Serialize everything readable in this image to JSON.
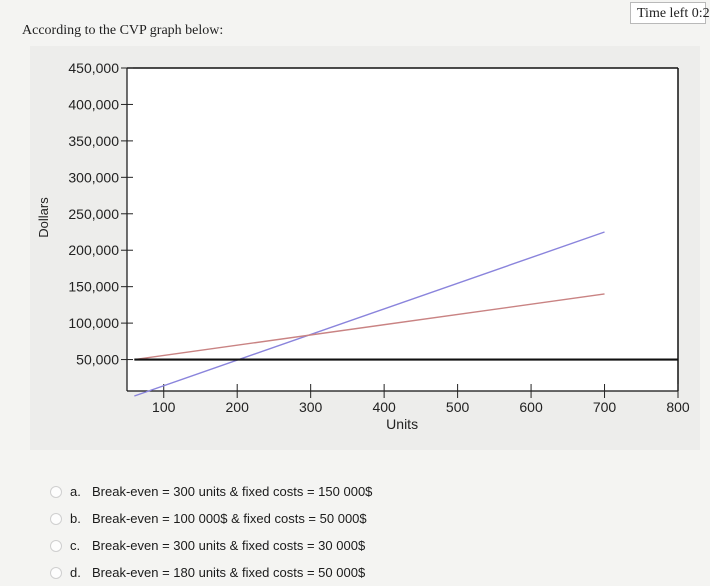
{
  "timer": {
    "label": "Time left 0:2"
  },
  "question": {
    "text": "According to the CVP graph below:"
  },
  "chart_data": {
    "type": "line",
    "ylabel": "Dollars",
    "xlabel": "Units",
    "xlim": [
      50,
      800
    ],
    "ylim": [
      0,
      450000
    ],
    "x_ticks": [
      100,
      200,
      300,
      400,
      500,
      600,
      700,
      800
    ],
    "x_tick_labels": [
      "100",
      "200",
      "300",
      "400",
      "500",
      "600",
      "700",
      "800"
    ],
    "y_ticks": [
      50000,
      100000,
      150000,
      200000,
      250000,
      300000,
      350000,
      400000,
      450000
    ],
    "y_tick_labels": [
      "50,000",
      "100,000",
      "150,000",
      "200,000",
      "250,000",
      "300,000",
      "350,000",
      "400,000",
      "450,000"
    ],
    "series": [
      {
        "kind": "revenue",
        "color": "#8a84dc",
        "x": [
          60,
          700
        ],
        "y": [
          0,
          225000
        ]
      },
      {
        "kind": "total-cost",
        "color": "#c98383",
        "x": [
          60,
          700
        ],
        "y": [
          50000,
          140000
        ]
      },
      {
        "kind": "fixed-cost",
        "color": "#111111",
        "x": [
          60,
          800
        ],
        "y": [
          50000,
          50000
        ]
      }
    ],
    "grid": false
  },
  "options": [
    {
      "letter": "a.",
      "text": "Break-even = 300 units & fixed costs = 150 000$"
    },
    {
      "letter": "b.",
      "text": "Break-even = 100 000$ & fixed costs = 50 000$"
    },
    {
      "letter": "c.",
      "text": "Break-even = 300 units & fixed costs = 30 000$"
    },
    {
      "letter": "d.",
      "text": "Break-even = 180 units & fixed costs = 50 000$"
    }
  ]
}
